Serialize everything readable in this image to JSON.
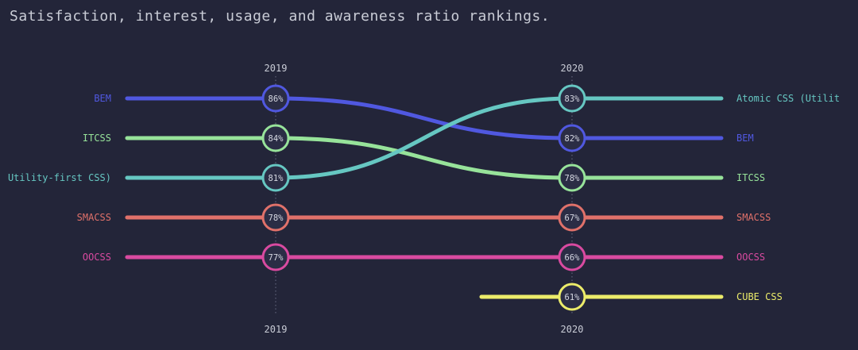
{
  "title": "Satisfaction, interest, usage, and awareness ratio rankings.",
  "chart_data": {
    "type": "line",
    "subtype": "bump",
    "title": "Satisfaction, interest, usage, and awareness ratio rankings.",
    "x": [
      "2019",
      "2020"
    ],
    "series": [
      {
        "name": "BEM",
        "color": "#5058e0",
        "values": [
          86,
          82
        ],
        "ranks": [
          1,
          2
        ],
        "left_label": "BEM",
        "right_label": "BEM"
      },
      {
        "name": "ITCSS",
        "color": "#97e39a",
        "values": [
          84,
          78
        ],
        "ranks": [
          2,
          3
        ],
        "left_label": "ITCSS",
        "right_label": "ITCSS"
      },
      {
        "name": "Atomic CSS (Utility-first CSS)",
        "color": "#66c7c2",
        "values": [
          81,
          83
        ],
        "ranks": [
          3,
          1
        ],
        "left_label": "Utility-first CSS)",
        "right_label": "Atomic CSS (Utilit"
      },
      {
        "name": "SMACSS",
        "color": "#e0716a",
        "values": [
          78,
          67
        ],
        "ranks": [
          4,
          4
        ],
        "left_label": "SMACSS",
        "right_label": "SMACSS"
      },
      {
        "name": "OOCSS",
        "color": "#d94aa0",
        "values": [
          77,
          66
        ],
        "ranks": [
          5,
          5
        ],
        "left_label": "OOCSS",
        "right_label": "OOCSS"
      },
      {
        "name": "CUBE CSS",
        "color": "#ecec6a",
        "values": [
          null,
          61
        ],
        "ranks": [
          null,
          6
        ],
        "left_label": "",
        "right_label": "CUBE CSS"
      }
    ],
    "value_suffix": "%"
  }
}
